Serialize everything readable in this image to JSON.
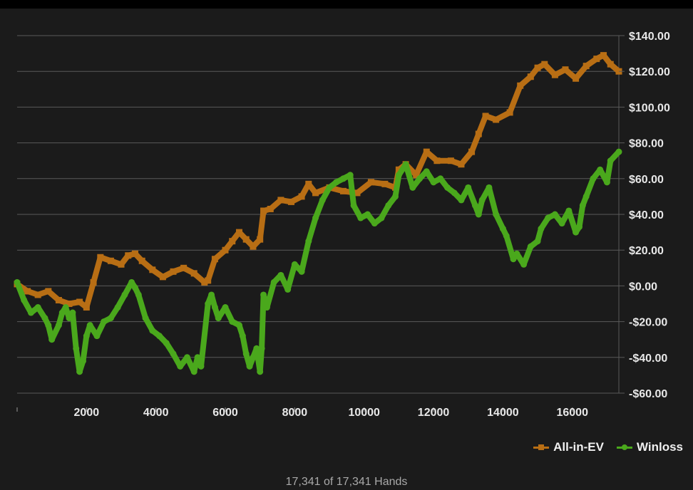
{
  "footer": {
    "hands_text": "17,341 of 17,341 Hands"
  },
  "legend": {
    "ev_label": "All-in-EV",
    "winloss_label": "Winloss"
  },
  "colors": {
    "background": "#1b1b1b",
    "grid": "#5a5a5a",
    "all_in_ev": "#b86e14",
    "winloss": "#4aa81c",
    "text": "#e8e8e8"
  },
  "chart_data": {
    "type": "line",
    "title": "",
    "xlabel": "",
    "ylabel": "",
    "xlim": [
      0,
      17341
    ],
    "ylim": [
      -60,
      140
    ],
    "x_ticks": [
      0,
      2000,
      4000,
      6000,
      8000,
      10000,
      12000,
      14000,
      16000
    ],
    "x_tick_labels": [
      "",
      "2000",
      "4000",
      "6000",
      "8000",
      "10000",
      "12000",
      "14000",
      "16000"
    ],
    "y_ticks": [
      -60,
      -40,
      -20,
      0,
      20,
      40,
      60,
      80,
      100,
      120,
      140
    ],
    "y_tick_labels": [
      "-$60.00",
      "-$40.00",
      "-$20.00",
      "$0.00",
      "$20.00",
      "$40.00",
      "$60.00",
      "$80.00",
      "$100.00",
      "$120.00",
      "$140.00"
    ],
    "y_axis_side": "right",
    "grid": true,
    "legend_position": "bottom-right",
    "series": [
      {
        "name": "All-in-EV",
        "color": "#b86e14",
        "x": [
          0,
          300,
          600,
          900,
          1200,
          1500,
          1800,
          2000,
          2200,
          2400,
          2700,
          3000,
          3200,
          3400,
          3600,
          3900,
          4200,
          4500,
          4800,
          5100,
          5400,
          5500,
          5700,
          6000,
          6200,
          6400,
          6600,
          6800,
          7000,
          7100,
          7300,
          7600,
          7900,
          8200,
          8400,
          8600,
          9000,
          9400,
          9800,
          10200,
          10600,
          10900,
          11000,
          11200,
          11500,
          11800,
          12100,
          12500,
          12800,
          13100,
          13300,
          13500,
          13800,
          14200,
          14500,
          14800,
          15000,
          15200,
          15500,
          15800,
          16100,
          16400,
          16700,
          16900,
          17100,
          17341
        ],
        "values": [
          1,
          -3,
          -5,
          -3,
          -8,
          -10,
          -9,
          -12,
          2,
          16,
          14,
          12,
          17,
          18,
          14,
          9,
          5,
          8,
          10,
          7,
          2,
          3,
          15,
          20,
          25,
          30,
          26,
          22,
          26,
          42,
          43,
          48,
          47,
          50,
          57,
          52,
          55,
          53,
          52,
          58,
          57,
          55,
          65,
          68,
          62,
          75,
          70,
          70,
          68,
          75,
          85,
          95,
          93,
          97,
          112,
          117,
          122,
          124,
          118,
          121,
          116,
          123,
          127,
          129,
          124,
          120
        ]
      },
      {
        "name": "Winloss",
        "color": "#4aa81c",
        "x": [
          0,
          200,
          400,
          600,
          800,
          900,
          1000,
          1200,
          1300,
          1400,
          1500,
          1600,
          1700,
          1800,
          1900,
          2000,
          2100,
          2300,
          2500,
          2700,
          2900,
          3100,
          3300,
          3400,
          3500,
          3700,
          3900,
          4100,
          4300,
          4500,
          4700,
          4900,
          5100,
          5200,
          5300,
          5500,
          5600,
          5700,
          5800,
          6000,
          6200,
          6400,
          6500,
          6600,
          6700,
          6800,
          6900,
          7000,
          7050,
          7100,
          7200,
          7400,
          7600,
          7800,
          8000,
          8200,
          8400,
          8600,
          8800,
          9000,
          9200,
          9400,
          9600,
          9700,
          9900,
          10100,
          10300,
          10500,
          10700,
          10900,
          11000,
          11200,
          11400,
          11600,
          11800,
          12000,
          12200,
          12400,
          12600,
          12800,
          13000,
          13200,
          13300,
          13400,
          13600,
          13800,
          14000,
          14100,
          14300,
          14400,
          14600,
          14800,
          15000,
          15100,
          15300,
          15500,
          15700,
          15900,
          16100,
          16200,
          16300,
          16400,
          16600,
          16800,
          17000,
          17100,
          17341
        ],
        "values": [
          2,
          -8,
          -15,
          -12,
          -18,
          -22,
          -30,
          -22,
          -15,
          -12,
          -18,
          -15,
          -35,
          -48,
          -42,
          -28,
          -22,
          -28,
          -20,
          -18,
          -12,
          -5,
          2,
          -1,
          -5,
          -18,
          -25,
          -28,
          -32,
          -38,
          -45,
          -40,
          -48,
          -40,
          -45,
          -10,
          -5,
          -12,
          -18,
          -12,
          -20,
          -22,
          -28,
          -38,
          -45,
          -40,
          -35,
          -48,
          -35,
          -5,
          -12,
          2,
          6,
          -2,
          12,
          8,
          25,
          38,
          48,
          55,
          58,
          60,
          62,
          45,
          38,
          40,
          35,
          38,
          45,
          50,
          62,
          68,
          55,
          60,
          64,
          58,
          60,
          55,
          52,
          48,
          55,
          45,
          40,
          48,
          55,
          40,
          32,
          28,
          15,
          18,
          12,
          22,
          25,
          32,
          38,
          40,
          35,
          42,
          30,
          33,
          45,
          50,
          60,
          65,
          58,
          70,
          75
        ]
      }
    ]
  }
}
